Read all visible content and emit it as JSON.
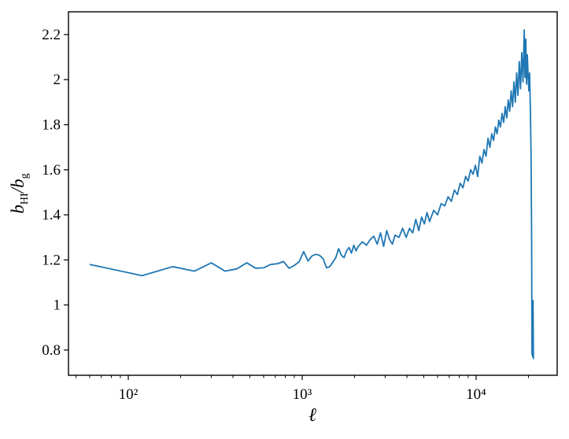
{
  "chart_data": {
    "type": "line",
    "xlabel": "ℓ",
    "ylabel": [
      "b",
      "HI",
      "/b",
      "g"
    ],
    "xscale": "log",
    "color": "#1f77b4",
    "xlim": [
      45.3,
      29250
    ],
    "ylim": [
      0.688,
      2.301
    ],
    "xticks": [
      {
        "value": 100,
        "label": "10²"
      },
      {
        "value": 1000,
        "label": "10³"
      },
      {
        "value": 10000,
        "label": "10⁴"
      }
    ],
    "xminorticks": [
      50,
      60,
      70,
      80,
      90,
      200,
      300,
      400,
      500,
      600,
      700,
      800,
      900,
      2000,
      3000,
      4000,
      5000,
      6000,
      7000,
      8000,
      9000,
      20000
    ],
    "yticks": [
      0.8,
      1.0,
      1.2,
      1.4,
      1.6,
      1.8,
      2.0,
      2.2
    ],
    "x": [
      60,
      120,
      180,
      240,
      300,
      360,
      420,
      480,
      540,
      600,
      660,
      720,
      780,
      840,
      900,
      960,
      1020,
      1080,
      1140,
      1200,
      1260,
      1320,
      1380,
      1440,
      1500,
      1560,
      1620,
      1680,
      1740,
      1800,
      1860,
      1920,
      1980,
      2040,
      2100,
      2220,
      2340,
      2460,
      2580,
      2700,
      2820,
      2940,
      3060,
      3180,
      3300,
      3420,
      3600,
      3780,
      3960,
      4140,
      4320,
      4500,
      4680,
      4860,
      5040,
      5220,
      5400,
      5700,
      6000,
      6300,
      6600,
      6900,
      7200,
      7500,
      7800,
      8100,
      8400,
      8700,
      9000,
      9300,
      9600,
      9900,
      10200,
      10500,
      10800,
      11100,
      11400,
      11700,
      12000,
      12300,
      12600,
      12900,
      13200,
      13500,
      13800,
      14100,
      14400,
      14700,
      15000,
      15300,
      15600,
      15900,
      16200,
      16500,
      16800,
      17100,
      17400,
      17700,
      18000,
      18300,
      18600,
      18900,
      19100,
      19300,
      19500,
      19700,
      19900,
      20100,
      20300,
      20500,
      20700,
      20850,
      20950,
      21050,
      21150,
      21250,
      21350
    ],
    "values": [
      1.18,
      1.13,
      1.17,
      1.15,
      1.187,
      1.15,
      1.16,
      1.187,
      1.163,
      1.165,
      1.18,
      1.183,
      1.193,
      1.163,
      1.175,
      1.192,
      1.237,
      1.195,
      1.218,
      1.225,
      1.22,
      1.205,
      1.165,
      1.17,
      1.19,
      1.21,
      1.25,
      1.22,
      1.21,
      1.24,
      1.255,
      1.23,
      1.265,
      1.24,
      1.26,
      1.28,
      1.265,
      1.29,
      1.305,
      1.27,
      1.32,
      1.26,
      1.33,
      1.29,
      1.27,
      1.31,
      1.3,
      1.34,
      1.3,
      1.34,
      1.32,
      1.38,
      1.33,
      1.39,
      1.36,
      1.41,
      1.37,
      1.42,
      1.4,
      1.45,
      1.44,
      1.48,
      1.46,
      1.51,
      1.49,
      1.54,
      1.52,
      1.57,
      1.55,
      1.6,
      1.58,
      1.62,
      1.57,
      1.66,
      1.63,
      1.69,
      1.66,
      1.74,
      1.7,
      1.76,
      1.73,
      1.79,
      1.76,
      1.82,
      1.79,
      1.85,
      1.81,
      1.88,
      1.83,
      1.91,
      1.86,
      1.95,
      1.88,
      1.99,
      1.9,
      2.03,
      1.93,
      2.08,
      1.96,
      2.12,
      1.99,
      2.22,
      2.01,
      2.18,
      1.98,
      2.11,
      2.02,
      1.95,
      2.03,
      1.88,
      1.66,
      1.3,
      0.78,
      1.0,
      0.77,
      1.02,
      0.76
    ]
  }
}
